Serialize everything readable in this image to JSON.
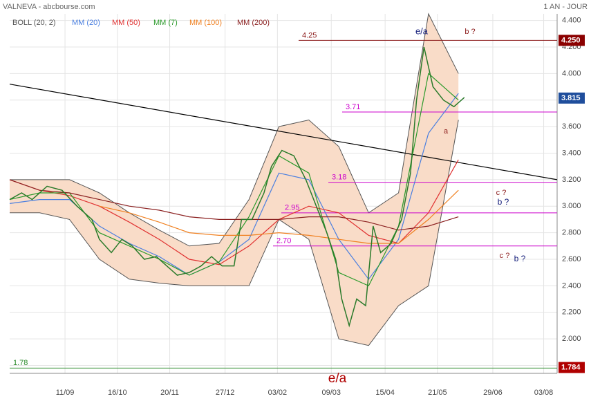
{
  "chart_data": {
    "type": "line",
    "title": "VALNEVA - abcbourse.com",
    "period": "1 AN - JOUR",
    "xlim": [
      0,
      366
    ],
    "xticks": [
      {
        "value": 37,
        "label": "11/09"
      },
      {
        "value": 72,
        "label": "16/10"
      },
      {
        "value": 107,
        "label": "20/11"
      },
      {
        "value": 144,
        "label": "27/12"
      },
      {
        "value": 179,
        "label": "03/02"
      },
      {
        "value": 215,
        "label": "09/03"
      },
      {
        "value": 251,
        "label": "15/04"
      },
      {
        "value": 286,
        "label": "21/05"
      },
      {
        "value": 323,
        "label": "29/06"
      },
      {
        "value": 357,
        "label": "03/08"
      }
    ],
    "ylim": [
      1.74,
      4.45
    ],
    "yticks": [
      {
        "value": 1.8,
        "label": "1.800"
      },
      {
        "value": 2.0,
        "label": "2.000"
      },
      {
        "value": 2.2,
        "label": "2.200"
      },
      {
        "value": 2.4,
        "label": "2.400"
      },
      {
        "value": 2.6,
        "label": "2.600"
      },
      {
        "value": 2.8,
        "label": "2.800"
      },
      {
        "value": 3.0,
        "label": "3.000"
      },
      {
        "value": 3.2,
        "label": "3.200"
      },
      {
        "value": 3.4,
        "label": "3.400"
      },
      {
        "value": 3.6,
        "label": "3.600"
      },
      {
        "value": 3.8,
        "label": "3.800"
      },
      {
        "value": 4.0,
        "label": "4.000"
      },
      {
        "value": 4.2,
        "label": "4.200"
      },
      {
        "value": 4.4,
        "label": "4.400"
      }
    ],
    "grid": true,
    "price": {
      "color": "#2a7a2a",
      "x": [
        0,
        8,
        15,
        25,
        35,
        45,
        55,
        60,
        68,
        75,
        82,
        90,
        98,
        105,
        112,
        120,
        128,
        135,
        142,
        150,
        155,
        162,
        170,
        175,
        182,
        190,
        198,
        205,
        212,
        218,
        222,
        227,
        232,
        238,
        243,
        248,
        255,
        262,
        268,
        272,
        277,
        283,
        290,
        297,
        304
      ],
      "values": [
        3.05,
        3.1,
        3.05,
        3.15,
        3.12,
        3.0,
        2.9,
        2.75,
        2.65,
        2.75,
        2.7,
        2.6,
        2.62,
        2.55,
        2.48,
        2.5,
        2.55,
        2.62,
        2.55,
        2.55,
        2.9,
        2.9,
        3.1,
        3.3,
        3.42,
        3.38,
        3.2,
        3.0,
        2.8,
        2.6,
        2.3,
        2.1,
        2.3,
        2.25,
        2.85,
        2.65,
        2.72,
        2.9,
        3.25,
        3.8,
        4.2,
        3.9,
        3.8,
        3.75,
        3.82
      ]
    },
    "bands": {
      "name": "BOLL (20, 2)",
      "color": "#555555",
      "fill": "#f9dcc8",
      "x": [
        0,
        20,
        40,
        60,
        80,
        100,
        120,
        140,
        160,
        180,
        200,
        220,
        240,
        260,
        280,
        300
      ],
      "upper": [
        3.2,
        3.2,
        3.2,
        3.1,
        2.95,
        2.82,
        2.7,
        2.72,
        3.05,
        3.6,
        3.65,
        3.45,
        2.95,
        3.1,
        4.45,
        4.0
      ],
      "lower": [
        2.95,
        2.95,
        2.9,
        2.6,
        2.45,
        2.42,
        2.4,
        2.4,
        2.4,
        2.9,
        2.75,
        2.0,
        1.95,
        2.25,
        2.4,
        3.65
      ]
    },
    "series": [
      {
        "name": "MM (20)",
        "color": "#4a7fe0",
        "x": [
          0,
          20,
          40,
          60,
          80,
          100,
          120,
          140,
          160,
          180,
          200,
          220,
          240,
          260,
          280,
          300
        ],
        "values": [
          3.02,
          3.05,
          3.05,
          2.85,
          2.72,
          2.62,
          2.48,
          2.58,
          2.75,
          3.25,
          3.2,
          2.75,
          2.45,
          2.75,
          3.55,
          3.85
        ]
      },
      {
        "name": "MM (50)",
        "color": "#e03030",
        "x": [
          0,
          20,
          40,
          60,
          80,
          100,
          120,
          140,
          160,
          180,
          200,
          220,
          240,
          260,
          280,
          300
        ],
        "values": [
          3.2,
          3.12,
          3.08,
          3.0,
          2.88,
          2.75,
          2.6,
          2.56,
          2.7,
          2.9,
          3.0,
          2.95,
          2.78,
          2.72,
          2.95,
          3.35
        ]
      },
      {
        "name": "MM (7)",
        "color": "#2a9a2a",
        "x": [
          0,
          20,
          40,
          60,
          80,
          100,
          120,
          140,
          160,
          180,
          200,
          220,
          240,
          260,
          280,
          300
        ],
        "values": [
          3.05,
          3.1,
          3.1,
          2.8,
          2.7,
          2.6,
          2.48,
          2.58,
          2.92,
          3.38,
          3.25,
          2.5,
          2.4,
          2.85,
          4.0,
          3.8
        ]
      },
      {
        "name": "MM (100)",
        "color": "#f08020",
        "x": [
          60,
          80,
          100,
          120,
          140,
          160,
          180,
          200,
          220,
          240,
          260,
          280,
          300
        ],
        "values": [
          3.0,
          2.95,
          2.88,
          2.8,
          2.78,
          2.78,
          2.8,
          2.78,
          2.75,
          2.72,
          2.72,
          2.9,
          3.12
        ]
      },
      {
        "name": "MM (200)",
        "color": "#8b2020",
        "x": [
          0,
          20,
          40,
          60,
          80,
          100,
          120,
          140,
          160,
          180,
          200,
          220,
          240,
          260,
          280,
          300
        ],
        "values": [
          3.2,
          3.12,
          3.1,
          3.05,
          3.0,
          2.97,
          2.92,
          2.9,
          2.9,
          2.9,
          2.92,
          2.92,
          2.88,
          2.82,
          2.85,
          2.92
        ]
      }
    ],
    "trendline": {
      "color": "#000000",
      "x": [
        0,
        366
      ],
      "values": [
        3.92,
        3.2
      ]
    },
    "levels": [
      {
        "value": 4.25,
        "label": "4.25",
        "color": "#8b1a1a"
      },
      {
        "value": 3.71,
        "label": "3.71",
        "color": "#cc00cc"
      },
      {
        "value": 3.18,
        "label": "3.18",
        "color": "#cc00cc"
      },
      {
        "value": 2.95,
        "label": "2.95",
        "color": "#cc00cc"
      },
      {
        "value": 2.7,
        "label": "2.70",
        "color": "#cc00cc"
      },
      {
        "value": 1.78,
        "label": "1.78",
        "color": "#2a8a2a"
      }
    ],
    "price_tags": [
      {
        "value": 4.25,
        "label": "4.250",
        "color": "#8b0000"
      },
      {
        "value": 3.815,
        "label": "3.815",
        "color": "#1f4e9c"
      },
      {
        "value": 1.784,
        "label": "1.784",
        "color": "#b00000"
      }
    ],
    "annotations": [
      {
        "text": "e/a",
        "color": "#1a237e"
      },
      {
        "text": "b ?",
        "color": "#8b1a1a"
      },
      {
        "text": "a",
        "color": "#8b1a1a"
      },
      {
        "text": "c ?",
        "color": "#8b1a1a"
      },
      {
        "text": "b ?",
        "color": "#1a237e"
      },
      {
        "text": "c ?",
        "color": "#8b1a1a"
      },
      {
        "text": "b ?",
        "color": "#1a237e"
      },
      {
        "text": "e/a",
        "color": "#b00000"
      }
    ]
  }
}
